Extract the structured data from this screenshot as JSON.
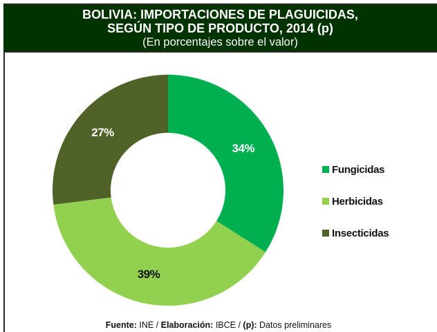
{
  "header": {
    "title_line1": "BOLIVIA: IMPORTACIONES DE PLAGUICIDAS,",
    "title_line2": "SEGÚN TIPO DE PRODUCTO, 2014 (p)",
    "subtitle": "(En porcentajes sobre el valor)",
    "background": "#003300"
  },
  "chart_data": {
    "type": "pie",
    "variant": "donut",
    "title": "BOLIVIA: IMPORTACIONES DE PLAGUICIDAS, SEGÚN TIPO DE PRODUCTO, 2014 (p)",
    "subtitle": "(En porcentajes sobre el valor)",
    "categories": [
      "Fungicidas",
      "Herbicidas",
      "Insecticidas"
    ],
    "values": [
      34,
      39,
      27
    ],
    "labels": [
      "34%",
      "39%",
      "27%"
    ],
    "colors": [
      "#00B050",
      "#92D050",
      "#4F6228"
    ],
    "label_colors": [
      "#ffffff",
      "#111111",
      "#ffffff"
    ],
    "start_angle": "12 o'clock, clockwise",
    "legend_position": "right"
  },
  "legend": {
    "items": [
      {
        "label": "Fungicidas",
        "color": "#00B050"
      },
      {
        "label": "Herbicidas",
        "color": "#92D050"
      },
      {
        "label": "Insecticidas",
        "color": "#4F6228"
      }
    ]
  },
  "footer": {
    "fuente_label": "Fuente:",
    "fuente_value": " INE / ",
    "elaboracion_label": "Elaboración:",
    "elaboracion_value": " IBCE / ",
    "p_label": "(p):",
    "p_value": " Datos preliminares"
  }
}
